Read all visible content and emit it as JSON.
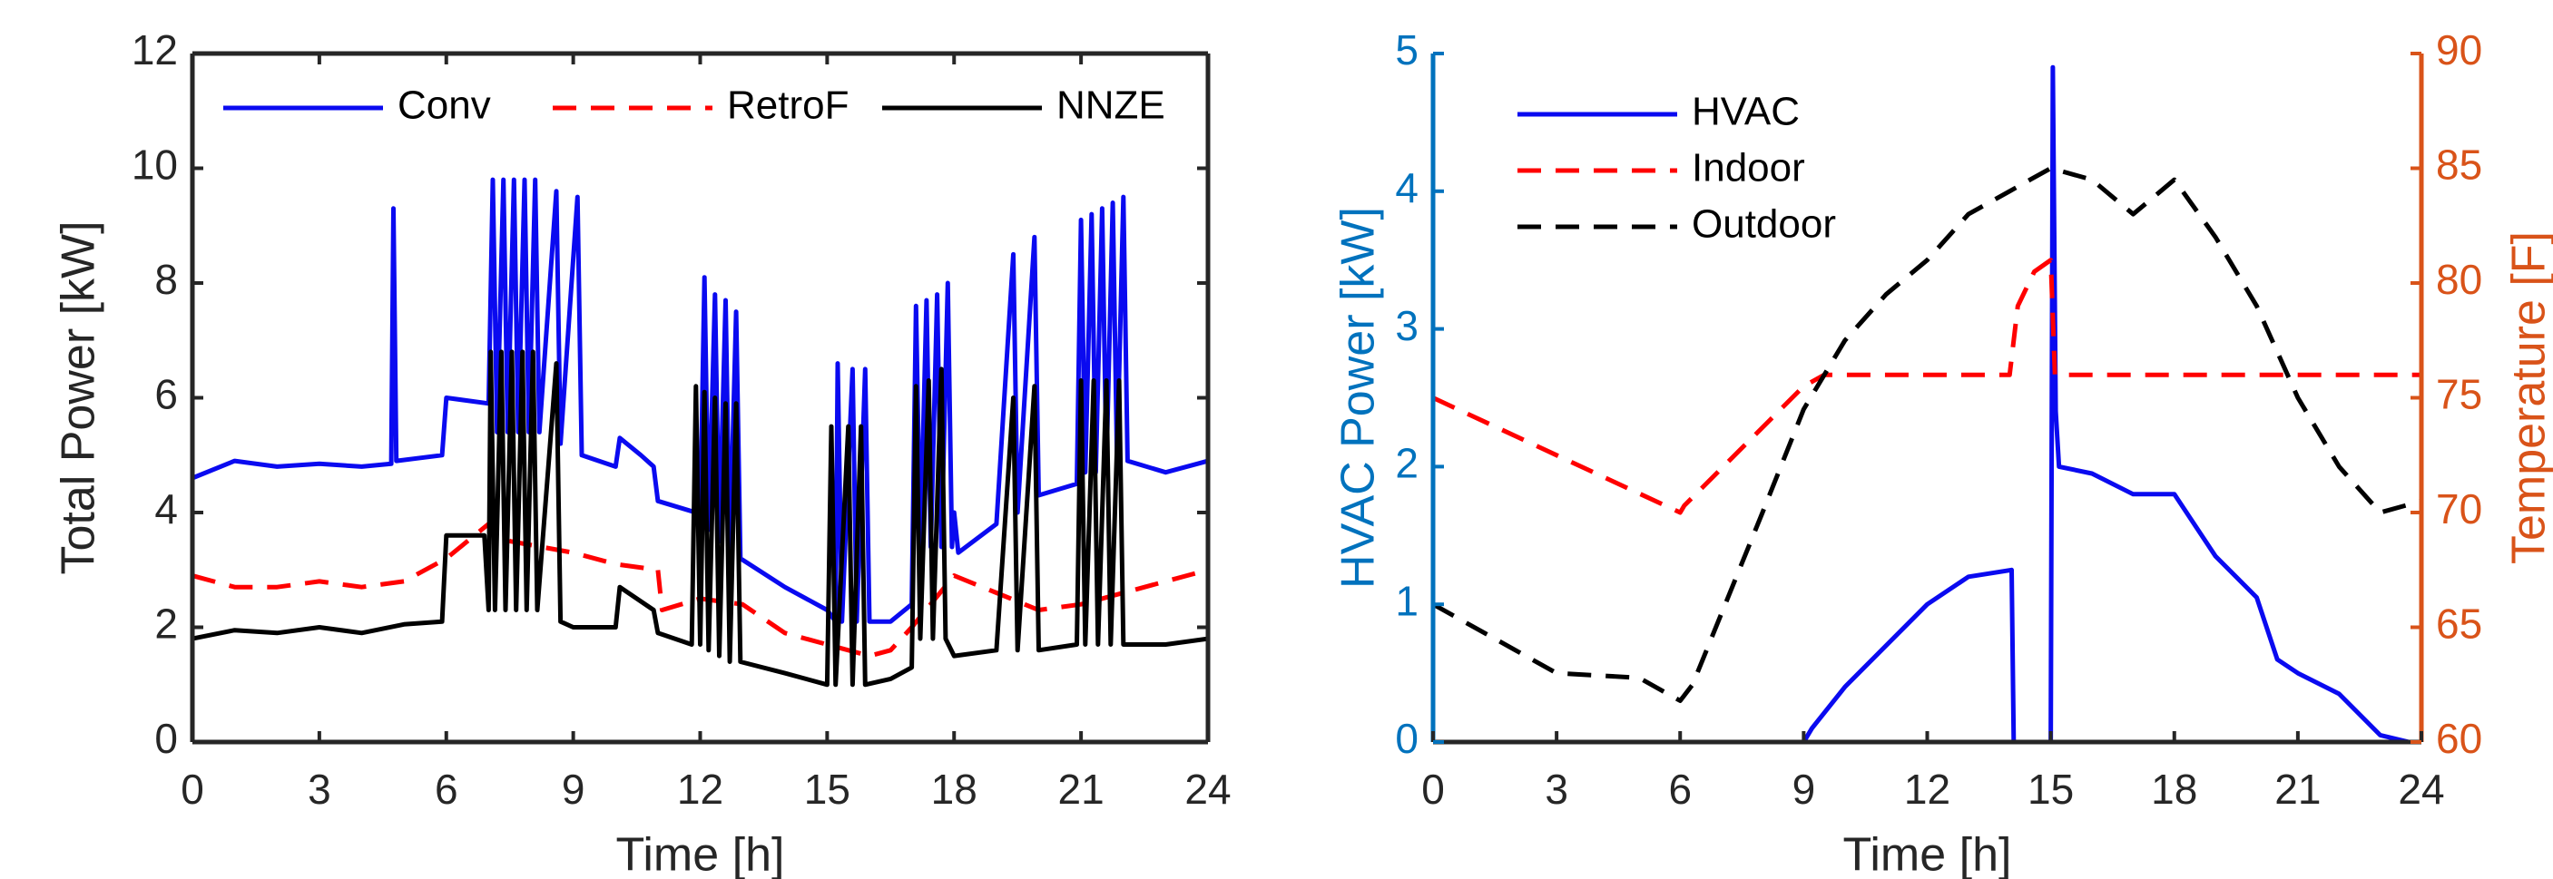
{
  "chart_data": [
    {
      "type": "line",
      "xlabel": "Time [h]",
      "ylabel": "Total Power [kW]",
      "xlim": [
        0,
        24
      ],
      "xticks": [
        0,
        3,
        6,
        9,
        12,
        15,
        18,
        21,
        24
      ],
      "ylim": [
        0,
        12
      ],
      "yticks": [
        0,
        2,
        4,
        6,
        8,
        10,
        12
      ],
      "legend": "upper center",
      "axis_color": "#262626",
      "ylabel_color": "#262626",
      "series": [
        {
          "name": "Conv",
          "color": "#0a0af0",
          "dash": "solid",
          "x": [
            0,
            1,
            2,
            3,
            4,
            4.7,
            4.75,
            4.82,
            5.9,
            6,
            7,
            7.1,
            7.2,
            7.35,
            7.45,
            7.6,
            7.7,
            7.85,
            7.95,
            8.1,
            8.2,
            8.6,
            8.7,
            9.1,
            9.2,
            10,
            10.1,
            10.6,
            10.9,
            11,
            11.9,
            12,
            12.1,
            12.2,
            12.35,
            12.45,
            12.6,
            12.7,
            12.85,
            12.95,
            14,
            15,
            15.2,
            15.25,
            15.35,
            15.6,
            15.7,
            15.9,
            16,
            16.5,
            17,
            17.1,
            17.2,
            17.35,
            17.45,
            17.6,
            17.7,
            17.85,
            17.95,
            18,
            18.1,
            19,
            19.4,
            19.5,
            19.9,
            20,
            20.9,
            21,
            21.1,
            21.25,
            21.35,
            21.5,
            21.6,
            21.75,
            21.85,
            22,
            22.1,
            23,
            24
          ],
          "values": [
            4.6,
            4.9,
            4.8,
            4.85,
            4.8,
            4.85,
            9.3,
            4.9,
            5.0,
            6.0,
            5.9,
            9.8,
            5.4,
            9.8,
            5.4,
            9.8,
            5.4,
            9.8,
            5.4,
            9.8,
            5.4,
            9.6,
            5.2,
            9.5,
            5.0,
            4.8,
            5.3,
            5.0,
            4.8,
            4.2,
            4.0,
            3.9,
            8.1,
            3.7,
            7.8,
            3.5,
            7.7,
            3.3,
            7.5,
            3.2,
            2.7,
            2.3,
            2.1,
            6.6,
            2.1,
            6.5,
            2.1,
            6.5,
            2.1,
            2.1,
            2.4,
            7.6,
            3.4,
            7.7,
            3.4,
            7.8,
            3.4,
            8.0,
            3.4,
            4.0,
            3.3,
            3.8,
            8.5,
            4.0,
            8.8,
            4.3,
            4.5,
            9.1,
            4.7,
            9.2,
            4.7,
            9.3,
            4.8,
            9.4,
            4.9,
            9.5,
            4.9,
            4.7,
            4.9
          ]
        },
        {
          "name": "RetroF",
          "color": "#ff0000",
          "dash": "dashed",
          "x": [
            0,
            1,
            2,
            3,
            4,
            5,
            6,
            7,
            7.5,
            9,
            10,
            11,
            11.1,
            12,
            13,
            14,
            15,
            16,
            16.5,
            17,
            18,
            19,
            20,
            21,
            22,
            23,
            24
          ],
          "values": [
            2.9,
            2.7,
            2.7,
            2.8,
            2.7,
            2.8,
            3.2,
            3.8,
            3.5,
            3.3,
            3.1,
            3.0,
            2.3,
            2.5,
            2.4,
            1.9,
            1.7,
            1.5,
            1.6,
            2.0,
            2.9,
            2.6,
            2.3,
            2.4,
            2.6,
            2.8,
            3.0
          ]
        },
        {
          "name": "NNZE",
          "color": "#000000",
          "dash": "solid",
          "x": [
            0,
            1,
            2,
            3,
            4,
            5,
            5.9,
            6,
            6.9,
            7,
            7.05,
            7.15,
            7.3,
            7.4,
            7.55,
            7.65,
            7.8,
            7.9,
            8.05,
            8.15,
            8.6,
            8.7,
            9,
            10,
            10.1,
            10.9,
            11,
            11.8,
            11.9,
            12,
            12.1,
            12.2,
            12.35,
            12.45,
            12.6,
            12.7,
            12.85,
            12.95,
            14,
            15,
            15.1,
            15.2,
            15.5,
            15.6,
            15.8,
            15.9,
            16.5,
            17,
            17.1,
            17.2,
            17.4,
            17.5,
            17.7,
            17.8,
            18,
            19,
            19.4,
            19.5,
            19.9,
            20,
            20.9,
            21,
            21.1,
            21.3,
            21.4,
            21.6,
            21.7,
            21.9,
            22,
            23,
            24
          ],
          "values": [
            1.8,
            1.95,
            1.9,
            2.0,
            1.9,
            2.05,
            2.1,
            3.6,
            3.6,
            2.3,
            6.8,
            2.3,
            6.8,
            2.3,
            6.8,
            2.3,
            6.8,
            2.3,
            6.8,
            2.3,
            6.6,
            2.1,
            2.0,
            2.0,
            2.7,
            2.3,
            1.9,
            1.7,
            6.2,
            1.7,
            6.1,
            1.6,
            6.0,
            1.5,
            5.9,
            1.4,
            5.9,
            1.4,
            1.2,
            1.0,
            5.5,
            1.0,
            5.5,
            1.0,
            5.5,
            1.0,
            1.1,
            1.3,
            6.2,
            1.8,
            6.3,
            1.8,
            6.5,
            1.8,
            1.5,
            1.6,
            6.0,
            1.6,
            6.2,
            1.6,
            1.7,
            6.3,
            1.7,
            6.3,
            1.7,
            6.3,
            1.7,
            6.3,
            1.7,
            1.7,
            1.8
          ]
        }
      ]
    },
    {
      "type": "line",
      "xlabel": "Time [h]",
      "ylabel": "HVAC Power [kW]",
      "y2label": "Temperature [F]",
      "xlim": [
        0,
        24
      ],
      "xticks": [
        0,
        3,
        6,
        9,
        12,
        15,
        18,
        21,
        24
      ],
      "ylim": [
        0,
        5
      ],
      "yticks": [
        0,
        1,
        2,
        3,
        4,
        5
      ],
      "y2lim": [
        60,
        90
      ],
      "y2ticks": [
        60,
        65,
        70,
        75,
        80,
        85,
        90
      ],
      "legend": "upper left",
      "axis_color": "#0072bd",
      "ylabel_color": "#0072bd",
      "y2_color": "#d95319",
      "series": [
        {
          "name": "HVAC",
          "color": "#0a0af0",
          "dash": "solid",
          "x": [
            0,
            9,
            9.2,
            10,
            11,
            12,
            13,
            14.05,
            14.1,
            15,
            15.05,
            15.12,
            15.2,
            16,
            17,
            18,
            19,
            20,
            20.5,
            21,
            22,
            23,
            23.7
          ],
          "values": [
            0,
            0,
            0.1,
            0.4,
            0.7,
            1.0,
            1.2,
            1.25,
            0,
            0,
            4.9,
            2.4,
            2.0,
            1.95,
            1.8,
            1.8,
            1.35,
            1.05,
            0.6,
            0.5,
            0.35,
            0.05,
            0
          ]
        },
        {
          "name": "Indoor",
          "color": "#ff0000",
          "dash": "dashed",
          "axis": "y2",
          "x": [
            0,
            3,
            6,
            6.1,
            9,
            9.5,
            14,
            14.2,
            14.6,
            15,
            15.1,
            24
          ],
          "values": [
            75,
            72.5,
            70,
            70.3,
            75.5,
            76,
            76,
            79,
            80.5,
            81,
            76,
            76
          ]
        },
        {
          "name": "Outdoor",
          "color": "#000000",
          "dash": "dashed",
          "axis": "y2",
          "x": [
            0,
            2,
            3,
            5,
            6,
            6.3,
            8,
            9,
            10,
            11,
            12,
            13,
            14,
            14.5,
            15,
            16,
            17,
            18,
            19,
            20,
            21,
            22,
            23,
            24
          ],
          "values": [
            66,
            64,
            63,
            62.8,
            61.8,
            62.5,
            70,
            74.5,
            77.5,
            79.5,
            81,
            83,
            84,
            84.5,
            85,
            84.5,
            83,
            84.5,
            82,
            79,
            75,
            72,
            70,
            70.5
          ]
        }
      ]
    }
  ]
}
